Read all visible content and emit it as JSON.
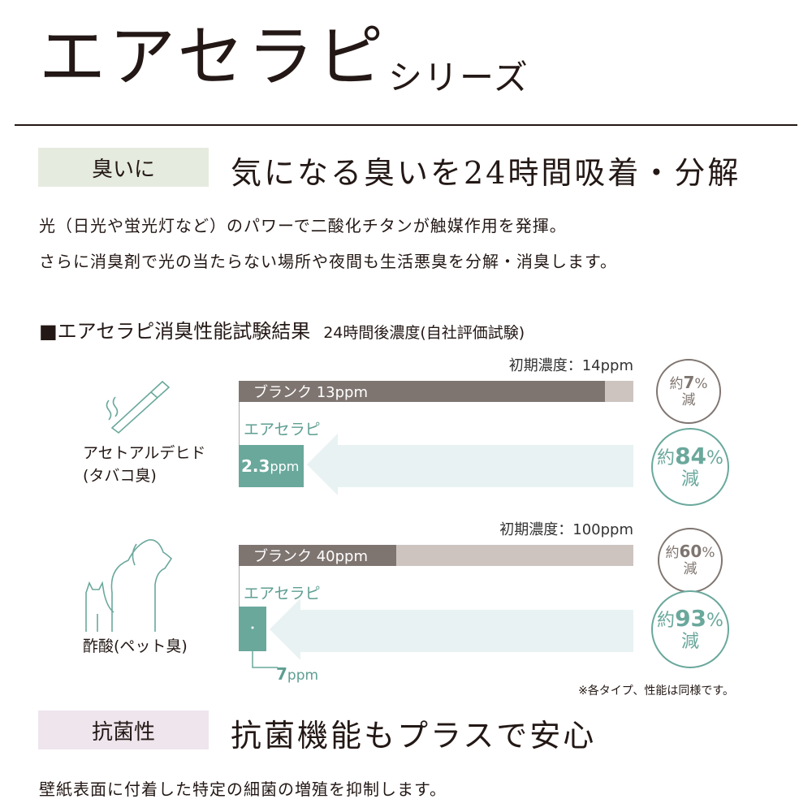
{
  "header": {
    "title": "エアセラピ",
    "subtitle": "シリーズ"
  },
  "section1": {
    "tag": "臭いに",
    "heading": "気になる臭いを24時間吸着・分解",
    "lines": [
      "光（日光や蛍光灯など）のパワーで二酸化チタンが触媒作用を発揮。",
      "さらに消臭剤で光の当たらない場所や夜間も生活悪臭を分解・消臭します。"
    ]
  },
  "test": {
    "title": "■エアセラピ消臭性能試験結果",
    "note": "24時間後濃度(自社評価試験)",
    "footnote": "※各タイプ、性能は同様です。"
  },
  "colors": {
    "blank": "#7f7570",
    "initial": "#cdc4c0",
    "product": "#6aa89c",
    "arrow": "#e8f2f2",
    "tag1": "#e6ebdf",
    "tag2": "#eee5ed"
  },
  "chart_data": [
    {
      "type": "bar",
      "gas": "アセトアルデヒド",
      "gas_note": "(タバコ臭)",
      "icon": "cigarette-icon",
      "initial_label": "初期濃度：14ppm",
      "initial": 14,
      "unit": "ppm",
      "series": [
        {
          "name": "ブランク",
          "value": 13,
          "label": "ブランク 13ppm"
        },
        {
          "name": "エアセラピ",
          "value": 2.3,
          "label_num": "2.3",
          "label_unit": "ppm"
        }
      ],
      "blank_reduction": {
        "prefix": "約",
        "value": "7",
        "suffix": "%",
        "word": "減"
      },
      "product_reduction": {
        "prefix": "約",
        "value": "84",
        "suffix": "%",
        "word": "減"
      }
    },
    {
      "type": "bar",
      "gas": "酢酸",
      "gas_note": "(ペット臭)",
      "icon": "dog-cat-icon",
      "initial_label": "初期濃度：100ppm",
      "initial": 100,
      "unit": "ppm",
      "series": [
        {
          "name": "ブランク",
          "value": 40,
          "label": "ブランク 40ppm"
        },
        {
          "name": "エアセラピ",
          "value": 7,
          "label_num": "7",
          "label_unit": "ppm"
        }
      ],
      "blank_reduction": {
        "prefix": "約",
        "value": "60",
        "suffix": "%",
        "word": "減"
      },
      "product_reduction": {
        "prefix": "約",
        "value": "93",
        "suffix": "%",
        "word": "減"
      }
    }
  ],
  "section2": {
    "tag": "抗菌性",
    "heading": "抗菌機能もプラスで安心",
    "line": "壁紙表面に付着した特定の細菌の増殖を抑制します。"
  }
}
